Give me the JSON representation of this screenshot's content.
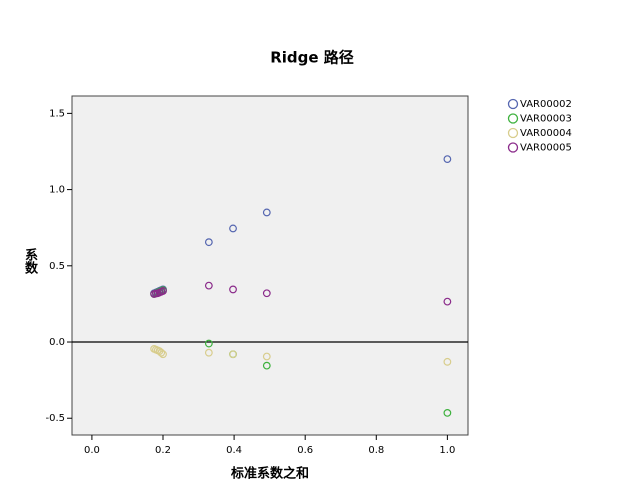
{
  "chart_data": {
    "type": "scatter",
    "title": "Ridge 路径",
    "x_label": "标准系数之和",
    "y_label": "系数",
    "x": [
      1.0,
      0.492,
      0.397,
      0.329,
      0.2,
      0.195,
      0.19,
      0.185,
      0.18,
      0.175
    ],
    "series": [
      {
        "name": "VAR00002",
        "color": "#5566b0",
        "values": [
          1.2,
          0.85,
          0.745,
          0.655,
          0.345,
          0.34,
          0.335,
          0.33,
          0.325,
          0.32
        ]
      },
      {
        "name": "VAR00003",
        "color": "#3db13d",
        "values": [
          -0.465,
          -0.155,
          -0.08,
          -0.01,
          0.34,
          0.335,
          0.33,
          0.325,
          0.32,
          0.315
        ]
      },
      {
        "name": "VAR00004",
        "color": "#d8cd8c",
        "values": [
          -0.13,
          -0.095,
          -0.08,
          -0.07,
          -0.08,
          -0.07,
          -0.06,
          -0.055,
          -0.05,
          -0.045
        ]
      },
      {
        "name": "VAR00005",
        "color": "#8a2a8a",
        "values": [
          0.265,
          0.32,
          0.345,
          0.37,
          0.335,
          0.33,
          0.325,
          0.32,
          0.318,
          0.315
        ]
      }
    ],
    "xlim": [
      -0.056,
      1.058
    ],
    "ylim": [
      -0.61,
      1.614
    ],
    "xticks": [
      {
        "value": 0,
        "label": "0.0"
      },
      {
        "value": 0.2,
        "label": "0.2"
      },
      {
        "value": 0.4,
        "label": "0.4"
      },
      {
        "value": 0.6,
        "label": "0.6"
      },
      {
        "value": 0.8,
        "label": "0.8"
      },
      {
        "value": 1,
        "label": "1.0"
      }
    ],
    "yticks": [
      {
        "value": -0.5,
        "label": "-0.5"
      },
      {
        "value": 0,
        "label": "0.0"
      },
      {
        "value": 0.5,
        "label": "0.5"
      },
      {
        "value": 1,
        "label": "1.0"
      },
      {
        "value": 1.5,
        "label": "1.5"
      }
    ],
    "reference_line": 0,
    "legend": "right"
  }
}
